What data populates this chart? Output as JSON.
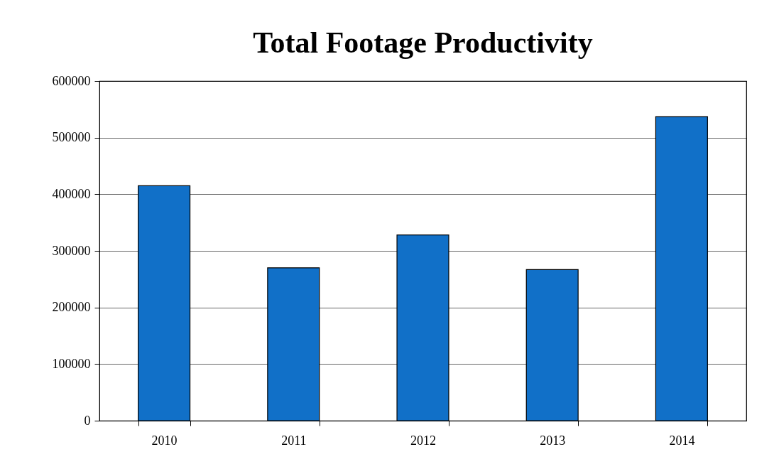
{
  "chart_data": {
    "type": "bar",
    "title": "Total Footage Productivity",
    "categories": [
      "2010",
      "2011",
      "2012",
      "2013",
      "2014"
    ],
    "values": [
      415000,
      270000,
      328000,
      267000,
      537000
    ],
    "color": "#1170c8",
    "ylim": [
      0,
      600000
    ],
    "yticks": [
      0,
      100000,
      200000,
      300000,
      400000,
      500000,
      600000
    ],
    "grid": "y"
  }
}
